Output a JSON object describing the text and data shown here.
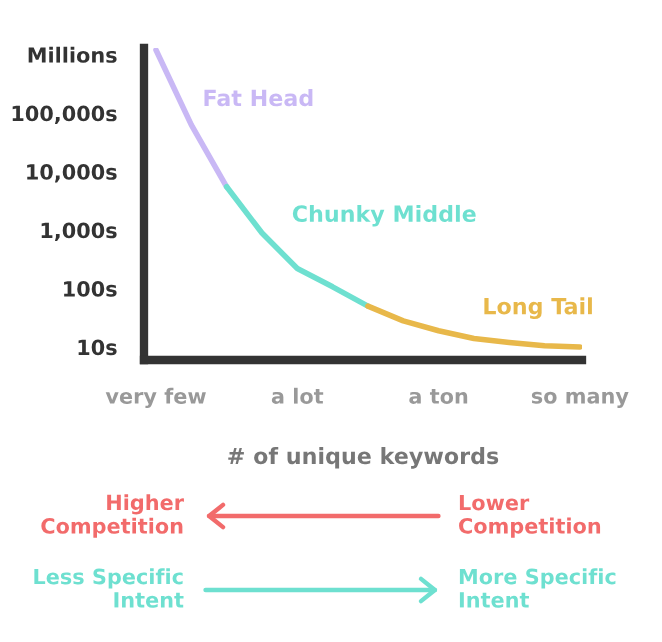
{
  "chart_data": {
    "type": "line",
    "xlabel": "# of unique keywords",
    "categories": [
      "very few",
      null,
      null,
      null,
      "a lot",
      null,
      null,
      null,
      "a ton",
      null,
      null,
      null,
      "so many"
    ],
    "series": [
      {
        "name": "Fat Head",
        "color": "#c9b8f5",
        "values": [
          1200000,
          63000,
          5500,
          null,
          null,
          null,
          null,
          null,
          null,
          null,
          null,
          null,
          null
        ]
      },
      {
        "name": "Chunky Middle",
        "color": "#6ee0d0",
        "values": [
          null,
          null,
          5500,
          890,
          220,
          107,
          50,
          null,
          null,
          null,
          null,
          null,
          null
        ]
      },
      {
        "name": "Long Tail",
        "color": "#e8b84a",
        "values": [
          null,
          null,
          null,
          null,
          null,
          null,
          50,
          28,
          19,
          14,
          12,
          10.5,
          10
        ]
      }
    ],
    "log": "y",
    "ylim": [
      6,
      1300000
    ],
    "yticks": [
      {
        "value": 10,
        "label": "10s"
      },
      {
        "value": 100,
        "label": "100s"
      },
      {
        "value": 1000,
        "label": "1,000s"
      },
      {
        "value": 10000,
        "label": "10,000s"
      },
      {
        "value": 100000,
        "label": "100,000s"
      },
      {
        "value": 1000000,
        "label": "Millions"
      }
    ],
    "grid": false,
    "marker": "none",
    "line_style": "solid",
    "annotations": [
      "Higher\nCompetition",
      "Lower\nCompetition",
      "Less Specific\nIntent",
      "More Specific\nIntent"
    ]
  }
}
